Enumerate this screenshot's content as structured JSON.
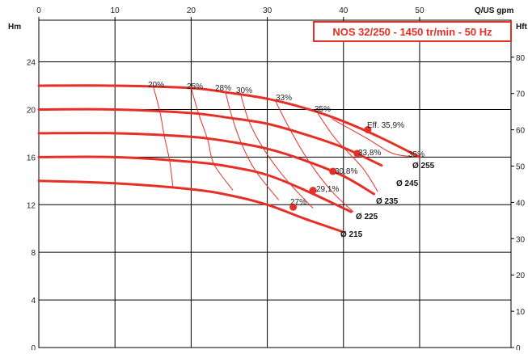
{
  "chart_data": {
    "type": "line",
    "title": "NOS 32/250 - 1450 tr/min - 50 Hz",
    "colors": {
      "curve": "#e53027",
      "efficiency": "#e53027",
      "grid": "#000000",
      "title": "#e53027"
    },
    "grid": true,
    "y_left": {
      "label": "Hm",
      "ticks": [
        "0",
        "4",
        "8",
        "12",
        "16",
        "20",
        "24"
      ],
      "range": [
        0,
        27.5
      ]
    },
    "y_right": {
      "label": "Hft",
      "ticks": [
        "0",
        "10",
        "20",
        "30",
        "40",
        "50",
        "60",
        "70",
        "80"
      ],
      "range": [
        0,
        90.2
      ]
    },
    "x_top": {
      "label": "Q/US gpm",
      "ticks": [
        "0",
        "10",
        "20",
        "30",
        "40",
        "50"
      ],
      "range": [
        0,
        62
      ]
    },
    "series": [
      {
        "name": "Ø 255",
        "x": [
          0,
          10,
          20,
          25,
          30,
          35,
          40,
          45,
          50
        ],
        "y": [
          22.0,
          22.0,
          21.8,
          21.4,
          20.9,
          20.1,
          19.0,
          17.6,
          16.0
        ]
      },
      {
        "name": "Ø 245",
        "x": [
          0,
          10,
          20,
          25,
          30,
          35,
          40,
          45
        ],
        "y": [
          20.0,
          20.0,
          19.7,
          19.3,
          18.8,
          17.9,
          16.8,
          15.3
        ]
      },
      {
        "name": "Ø 235",
        "x": [
          0,
          10,
          20,
          25,
          30,
          35,
          40,
          44
        ],
        "y": [
          18.0,
          18.0,
          17.7,
          17.3,
          16.7,
          15.7,
          14.4,
          12.9
        ]
      },
      {
        "name": "Ø 225",
        "x": [
          0,
          10,
          20,
          25,
          30,
          35,
          41
        ],
        "y": [
          16.0,
          16.0,
          15.6,
          15.2,
          14.5,
          13.2,
          11.4
        ]
      },
      {
        "name": "Ø 215",
        "x": [
          0,
          10,
          20,
          25,
          30,
          35,
          40
        ],
        "y": [
          14.0,
          13.8,
          13.3,
          12.8,
          12.0,
          10.8,
          9.7
        ]
      }
    ],
    "efficiency_labels": [
      "20%",
      "25%",
      "28%",
      "30%",
      "33%",
      "35%",
      "Eff. 35,9%",
      "33,8%",
      "35%",
      "30,8%",
      "29,1%",
      "27%"
    ],
    "efficiency_lines": [
      {
        "label": "20%",
        "x": [
          15.0,
          15.9,
          16.5,
          17.2,
          17.6
        ],
        "y": [
          22.0,
          19.8,
          17.7,
          15.6,
          13.5
        ]
      },
      {
        "label": "25%",
        "x": [
          20.0,
          21.0,
          22.2,
          23.0,
          25.5
        ],
        "y": [
          21.8,
          19.6,
          17.4,
          15.4,
          13.2
        ]
      },
      {
        "label": "28%",
        "x": [
          24.5,
          25.4,
          26.7,
          28.5,
          31.5
        ],
        "y": [
          21.5,
          19.3,
          17.0,
          14.8,
          12.4
        ]
      },
      {
        "label": "30%",
        "x": [
          26.5,
          27.6,
          29.6,
          32.5,
          36.0
        ],
        "y": [
          21.3,
          19.0,
          16.6,
          14.1,
          11.7
        ]
      },
      {
        "label": "33%",
        "x": [
          31.0,
          33.0,
          35.5,
          38.5,
          41.3
        ],
        "y": [
          20.8,
          18.3,
          15.6,
          13.1,
          11.4
        ]
      },
      {
        "label": "35%",
        "x": [
          36.5,
          39.0,
          42.5,
          44.5
        ],
        "y": [
          19.8,
          17.5,
          15.1,
          13.1
        ]
      },
      {
        "label": "35% ",
        "x": [
          38.5,
          43.0,
          46.5,
          50.0
        ],
        "y": [
          19.2,
          17.6,
          16.3,
          16.0
        ]
      }
    ],
    "bep_points": [
      {
        "label": "Ø 255",
        "x": 43.2,
        "y": 18.3
      },
      {
        "label": "Ø 245",
        "x": 41.8,
        "y": 16.3
      },
      {
        "label": "Ø 235",
        "x": 38.6,
        "y": 14.8
      },
      {
        "label": "Ø 225",
        "x": 36.0,
        "y": 13.2
      },
      {
        "label": "Ø 215",
        "x": 33.4,
        "y": 11.8
      }
    ]
  }
}
